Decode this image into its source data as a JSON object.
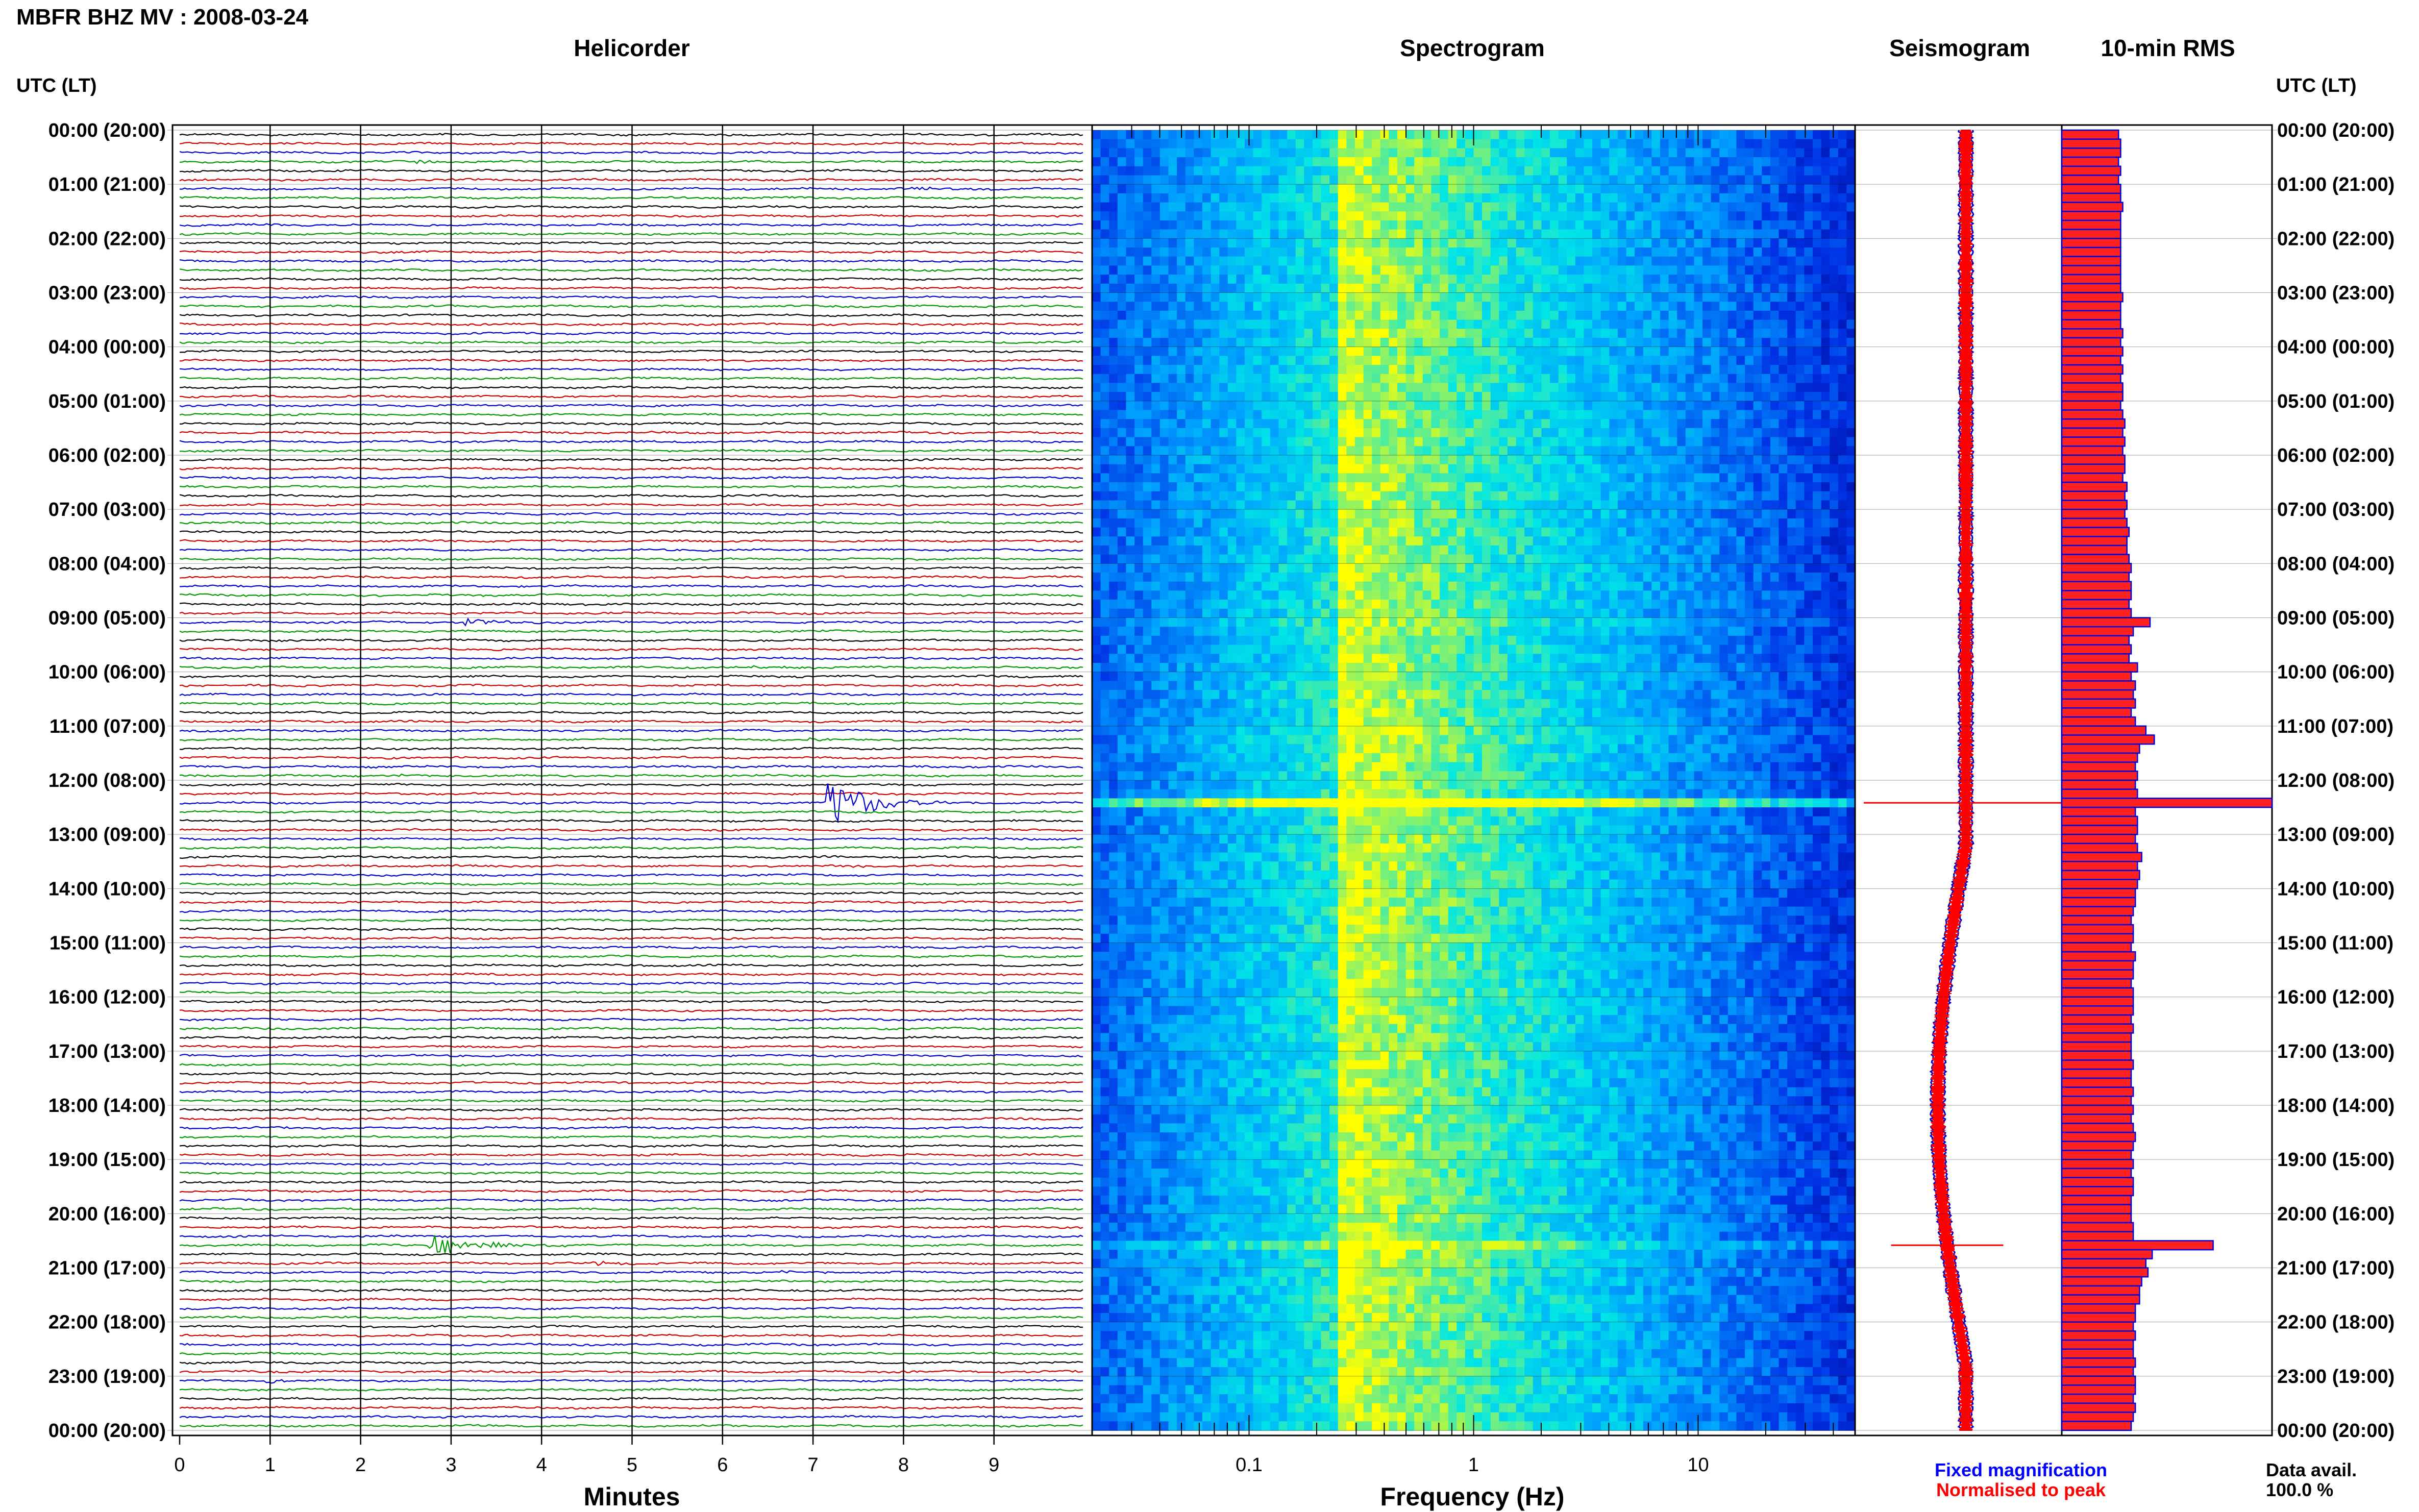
{
  "header": {
    "station_title": "MBFR BHZ MV : 2008-03-24",
    "left_time_label": "UTC (LT)",
    "right_time_label": "UTC (LT)"
  },
  "panels": {
    "helicorder_title": "Helicorder",
    "spectrogram_title": "Spectrogram",
    "seismogram_title": "Seismogram",
    "rms_title": "10-min RMS"
  },
  "footer": {
    "fixed_magnification": "Fixed magnification",
    "normalised_to_peak": "Normalised to peak",
    "data_avail_label": "Data avail.",
    "data_avail_value": "100.0 %"
  },
  "colors": {
    "trace_cycle": [
      "#000000",
      "#cc0000",
      "#0000cc",
      "#009900"
    ],
    "rms_bar_fill": "#ff2020",
    "rms_bar_edge": "#0000dd",
    "seismogram_trace": "#ff0000",
    "fixed_magnification_text": "#0000ff",
    "normalised_text": "#ff0000",
    "spectrogram_low": "#00008b",
    "spectrogram_mid": "#00bfff",
    "spectrogram_high": "#ffff00"
  },
  "chart_data": [
    {
      "type": "line",
      "name": "helicorder",
      "xlabel": "Minutes",
      "x_ticks": [
        0,
        1,
        2,
        3,
        4,
        5,
        6,
        7,
        8,
        9
      ],
      "xlim": [
        0,
        10
      ],
      "y_tick_labels": [
        "00:00 (20:00)",
        "01:00 (21:00)",
        "02:00 (22:00)",
        "03:00 (23:00)",
        "04:00 (00:00)",
        "05:00 (01:00)",
        "06:00 (02:00)",
        "07:00 (03:00)",
        "08:00 (04:00)",
        "09:00 (05:00)",
        "10:00 (06:00)",
        "11:00 (07:00)",
        "12:00 (08:00)",
        "13:00 (09:00)",
        "14:00 (10:00)",
        "15:00 (11:00)",
        "16:00 (12:00)",
        "17:00 (13:00)",
        "18:00 (14:00)",
        "19:00 (15:00)",
        "20:00 (16:00)",
        "21:00 (17:00)",
        "22:00 (18:00)",
        "23:00 (19:00)",
        "00:00 (20:00)"
      ],
      "trace_count": 144,
      "events": [
        {
          "row": 3,
          "minute": 2.6,
          "amplitude": 0.7
        },
        {
          "row": 6,
          "minute": 7.9,
          "amplitude": 0.5
        },
        {
          "row": 18,
          "minute": 1.6,
          "amplitude": 0.5
        },
        {
          "row": 54,
          "minute": 3.2,
          "amplitude": 1.1
        },
        {
          "row": 59,
          "minute": 6.4,
          "amplitude": 0.4
        },
        {
          "row": 66,
          "minute": 4.8,
          "amplitude": 0.5
        },
        {
          "row": 67,
          "minute": 7.0,
          "amplitude": 0.5
        },
        {
          "row": 71,
          "minute": 2.3,
          "amplitude": 0.4
        },
        {
          "row": 74,
          "minute": 7.2,
          "amplitude": 9.0
        },
        {
          "row": 81,
          "minute": 7.4,
          "amplitude": 0.6
        },
        {
          "row": 123,
          "minute": 2.8,
          "amplitude": 4.5
        },
        {
          "row": 125,
          "minute": 4.6,
          "amplitude": 0.6
        },
        {
          "row": 126,
          "minute": 6.6,
          "amplitude": 0.5
        },
        {
          "row": 138,
          "minute": 1.0,
          "amplitude": 0.5
        }
      ]
    },
    {
      "type": "heatmap",
      "name": "spectrogram",
      "xlabel": "Frequency (Hz)",
      "x_scale": "log",
      "xlim": [
        0.02,
        50
      ],
      "x_tick_labels": [
        {
          "value": 0.1,
          "label": "0.1"
        },
        {
          "value": 1,
          "label": "1"
        },
        {
          "value": 10,
          "label": "10"
        }
      ],
      "peak_frequency_hz": 0.25,
      "rows": 144
    },
    {
      "type": "line",
      "name": "seismogram",
      "xlabel": "",
      "note_baseline": "slow drift",
      "spikes": [
        {
          "row": 74,
          "amplitude": 1.0
        },
        {
          "row": 123,
          "amplitude": 0.55
        }
      ]
    },
    {
      "type": "bar",
      "name": "10-min RMS",
      "orientation": "horizontal",
      "values": [
        0.27,
        0.28,
        0.28,
        0.27,
        0.28,
        0.27,
        0.28,
        0.28,
        0.29,
        0.28,
        0.28,
        0.28,
        0.28,
        0.28,
        0.28,
        0.28,
        0.28,
        0.28,
        0.29,
        0.28,
        0.28,
        0.28,
        0.29,
        0.28,
        0.29,
        0.28,
        0.29,
        0.28,
        0.29,
        0.29,
        0.28,
        0.29,
        0.3,
        0.29,
        0.3,
        0.29,
        0.3,
        0.3,
        0.29,
        0.31,
        0.3,
        0.31,
        0.3,
        0.31,
        0.32,
        0.31,
        0.31,
        0.32,
        0.33,
        0.32,
        0.33,
        0.33,
        0.32,
        0.33,
        0.42,
        0.34,
        0.32,
        0.33,
        0.32,
        0.36,
        0.33,
        0.35,
        0.34,
        0.35,
        0.33,
        0.35,
        0.4,
        0.44,
        0.37,
        0.36,
        0.35,
        0.36,
        0.35,
        0.36,
        1.4,
        0.35,
        0.36,
        0.36,
        0.35,
        0.36,
        0.38,
        0.36,
        0.37,
        0.36,
        0.35,
        0.35,
        0.34,
        0.33,
        0.34,
        0.34,
        0.33,
        0.35,
        0.34,
        0.34,
        0.33,
        0.34,
        0.34,
        0.34,
        0.33,
        0.34,
        0.33,
        0.33,
        0.33,
        0.34,
        0.33,
        0.33,
        0.34,
        0.33,
        0.34,
        0.33,
        0.34,
        0.35,
        0.34,
        0.33,
        0.34,
        0.33,
        0.34,
        0.34,
        0.33,
        0.33,
        0.33,
        0.34,
        0.34,
        0.72,
        0.43,
        0.4,
        0.41,
        0.38,
        0.37,
        0.37,
        0.35,
        0.35,
        0.34,
        0.35,
        0.34,
        0.34,
        0.35,
        0.34,
        0.35,
        0.35,
        0.34,
        0.35,
        0.34,
        0.33
      ]
    }
  ]
}
